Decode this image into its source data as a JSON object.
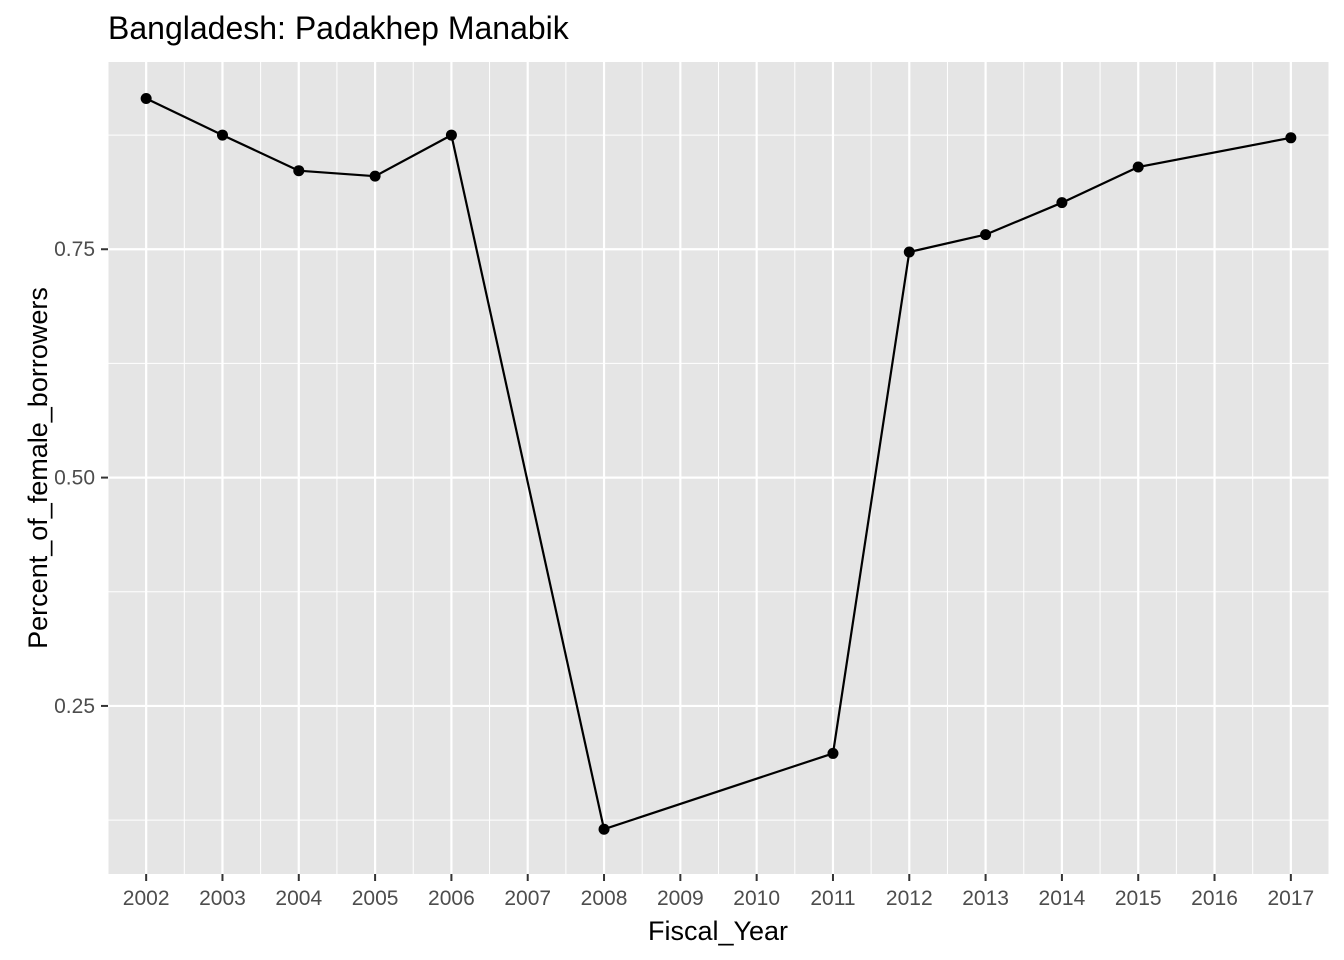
{
  "chart_data": {
    "type": "line",
    "title": "Bangladesh:  Padakhep Manabik",
    "xlabel": "Fiscal_Year",
    "ylabel": "Percent_of_female_borrowers",
    "x_ticks": [
      "2002",
      "2003",
      "2004",
      "2005",
      "2006",
      "2007",
      "2008",
      "2009",
      "2010",
      "2011",
      "2012",
      "2013",
      "2014",
      "2015",
      "2016",
      "2017"
    ],
    "y_ticks": [
      "0.25",
      "0.50",
      "0.75"
    ],
    "xlim": [
      2001.5,
      2017.5
    ],
    "ylim": [
      0.066,
      0.955
    ],
    "grid": true,
    "legend": "none",
    "colors": {
      "panel": "#e5e5e5",
      "grid": "#ffffff",
      "line": "#000000",
      "point": "#000000",
      "tick": "#333333",
      "tick_label": "#4d4d4d"
    },
    "series": [
      {
        "x": [
          2002,
          2003,
          2004,
          2005,
          2006,
          2008,
          2011,
          2012,
          2013,
          2014,
          2015,
          2017
        ],
        "y": [
          0.915,
          0.875,
          0.836,
          0.83,
          0.875,
          0.115,
          0.198,
          0.747,
          0.766,
          0.801,
          0.84,
          0.872
        ]
      }
    ]
  }
}
